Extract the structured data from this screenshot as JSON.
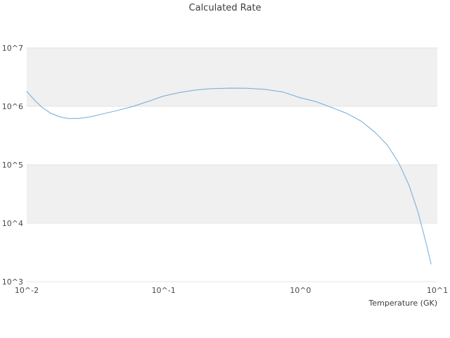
{
  "chart_data": {
    "type": "line",
    "title": "Calculated Rate",
    "xlabel": "Temperature (GK)",
    "ylabel": "",
    "x_scale": "log",
    "y_scale": "log",
    "xlim": [
      0.01,
      10
    ],
    "ylim": [
      1000,
      10000000
    ],
    "x_ticks": [
      {
        "v": 0.01,
        "label": "10^-2"
      },
      {
        "v": 0.1,
        "label": "10^-1"
      },
      {
        "v": 1,
        "label": "10^0"
      },
      {
        "v": 10,
        "label": "10^1"
      }
    ],
    "y_ticks": [
      {
        "v": 1000,
        "label": "10^3"
      },
      {
        "v": 10000,
        "label": "10^4"
      },
      {
        "v": 100000,
        "label": "10^5"
      },
      {
        "v": 1000000,
        "label": "10^6"
      },
      {
        "v": 10000000,
        "label": "10^7"
      }
    ],
    "x": [
      0.01,
      0.0115,
      0.013,
      0.015,
      0.0175,
      0.02,
      0.024,
      0.029,
      0.035,
      0.045,
      0.06,
      0.08,
      0.1,
      0.13,
      0.17,
      0.22,
      0.3,
      0.4,
      0.55,
      0.75,
      1.0,
      1.3,
      1.7,
      2.2,
      2.8,
      3.5,
      4.3,
      5.2,
      6.2,
      7.2,
      8.2,
      9.0
    ],
    "y": [
      1800000.0,
      1250000.0,
      950000.0,
      760000.0,
      660000.0,
      620000.0,
      620000.0,
      660000.0,
      730000.0,
      840000.0,
      1000000.0,
      1250000.0,
      1500000.0,
      1720000.0,
      1900000.0,
      2000000.0,
      2050000.0,
      2040000.0,
      1950000.0,
      1750000.0,
      1400000.0,
      1200000.0,
      950000.0,
      750000.0,
      550000.0,
      360000.0,
      220000.0,
      110000.0,
      45000.0,
      16000.0,
      5000.0,
      2000.0
    ],
    "grid": "horizontal-decades",
    "legend": "none",
    "line_color": "#74a9d4",
    "band_color": "#f0f0f0",
    "grid_color": "#e4e4e4",
    "tick_color": "#4a4a4a",
    "title_color": "#3d3d3d"
  }
}
